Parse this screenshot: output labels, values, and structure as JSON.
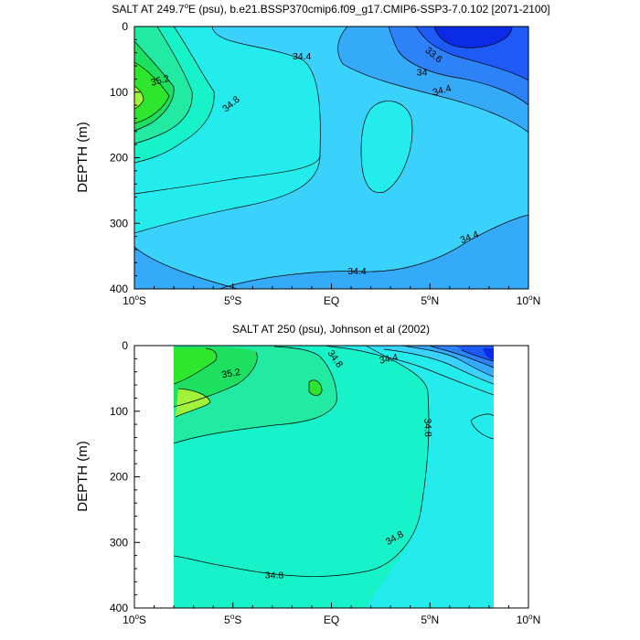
{
  "colors": {
    "s336": "#0a2ae6",
    "s338": "#1e5af5",
    "s340": "#2e82f8",
    "s342": "#35aaf8",
    "s344": "#3ad2fa",
    "s346": "#24ecec",
    "s348": "#18f2c8",
    "s350": "#22eaa2",
    "s352": "#1ee060",
    "s354": "#2ee62e",
    "s356": "#a0f23a"
  },
  "chart_data": [
    {
      "type": "contour",
      "title_pre": "SALT AT 249.7",
      "title_sup": "o",
      "title_post": "E (psu), b.e21.BSSP370cmip6.f09_g17.CMIP6-SSP3-7.0.102 [2071-2100]",
      "ylabel": "DEPTH (m)",
      "xlim": [
        -10,
        10
      ],
      "ylim": [
        400,
        0
      ],
      "x_ticks": [
        {
          "value": -10,
          "num": "10",
          "deg": "o",
          "hemi": "S"
        },
        {
          "value": -5,
          "num": "5",
          "deg": "o",
          "hemi": "S"
        },
        {
          "value": 0,
          "num": "EQ",
          "deg": "",
          "hemi": ""
        },
        {
          "value": 5,
          "num": "5",
          "deg": "o",
          "hemi": "N"
        },
        {
          "value": 10,
          "num": "10",
          "deg": "o",
          "hemi": "N"
        }
      ],
      "y_ticks": [
        {
          "value": 0,
          "label": "0"
        },
        {
          "value": 100,
          "label": "100"
        },
        {
          "value": 200,
          "label": "200"
        },
        {
          "value": 300,
          "label": "300"
        },
        {
          "value": 400,
          "label": "400"
        }
      ],
      "contour_labels": [
        {
          "text": "34.4",
          "x": -1.5,
          "y": 45,
          "angle": 0
        },
        {
          "text": "35.2",
          "x": -8.7,
          "y": 82,
          "angle": -15
        },
        {
          "text": "34.8",
          "x": -5.1,
          "y": 118,
          "angle": -40
        },
        {
          "text": "33.6",
          "x": 5.2,
          "y": 43,
          "angle": 40
        },
        {
          "text": "34",
          "x": 4.6,
          "y": 70,
          "angle": 0
        },
        {
          "text": "34.4",
          "x": 5.6,
          "y": 97,
          "angle": -15
        },
        {
          "text": "34.4",
          "x": 7.0,
          "y": 321,
          "angle": -22
        },
        {
          "text": "34.4",
          "x": 1.3,
          "y": 373,
          "angle": 0
        }
      ]
    },
    {
      "type": "contour",
      "title": "SALT AT 250 (psu), Johnson et al (2002)",
      "ylabel": "DEPTH (m)",
      "xlim": [
        -10,
        10
      ],
      "ylim": [
        400,
        0
      ],
      "data_xlim": [
        -8,
        8.2
      ],
      "x_ticks": [
        {
          "value": -10,
          "num": "10",
          "deg": "o",
          "hemi": "S"
        },
        {
          "value": -5,
          "num": "5",
          "deg": "o",
          "hemi": "S"
        },
        {
          "value": 0,
          "num": "EQ",
          "deg": "",
          "hemi": ""
        },
        {
          "value": 5,
          "num": "5",
          "deg": "o",
          "hemi": "N"
        },
        {
          "value": 10,
          "num": "10",
          "deg": "o",
          "hemi": "N"
        }
      ],
      "y_ticks": [
        {
          "value": 0,
          "label": "0"
        },
        {
          "value": 100,
          "label": "100"
        },
        {
          "value": 200,
          "label": "200"
        },
        {
          "value": 300,
          "label": "300"
        },
        {
          "value": 400,
          "label": "400"
        }
      ],
      "contour_labels": [
        {
          "text": "35.2",
          "x": -5.1,
          "y": 42,
          "angle": -10
        },
        {
          "text": "34.8",
          "x": 0.2,
          "y": 20,
          "angle": 55
        },
        {
          "text": "34.4",
          "x": 2.9,
          "y": 20,
          "angle": -12
        },
        {
          "text": "34.8",
          "x": 4.9,
          "y": 125,
          "angle": 88
        },
        {
          "text": "34.8",
          "x": 3.2,
          "y": 293,
          "angle": -30
        },
        {
          "text": "34.8",
          "x": -2.9,
          "y": 350,
          "angle": 0
        }
      ]
    }
  ]
}
